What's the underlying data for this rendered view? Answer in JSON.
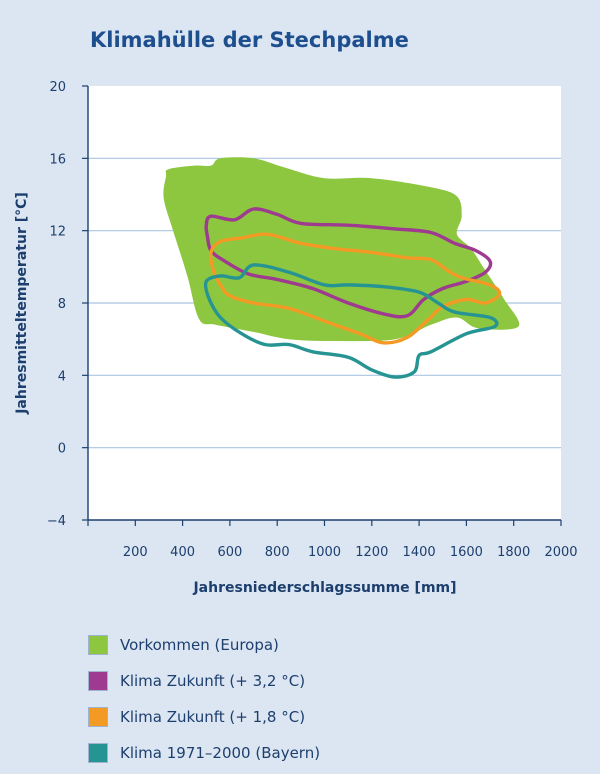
{
  "chart_data": {
    "type": "area",
    "title": "Klimahülle der Stechpalme",
    "xlabel": "Jahresniederschlagssumme [mm]",
    "ylabel": "Jahresmitteltemperatur [°C]",
    "xlim": [
      0,
      2000
    ],
    "ylim": [
      -4,
      20
    ],
    "x_ticks": [
      200,
      400,
      600,
      800,
      1000,
      1200,
      1400,
      1600,
      1800,
      2000
    ],
    "y_ticks": [
      -4,
      0,
      4,
      8,
      12,
      16,
      20
    ],
    "y_tick_labels": [
      "−4",
      "0",
      "4",
      "8",
      "12",
      "16",
      "20"
    ],
    "grid": "horizontal",
    "legend_position": "bottom",
    "series": [
      {
        "name": "Vorkommen (Europa)",
        "color": "#8dc63f",
        "fill": true,
        "points": [
          [
            340,
            15.4
          ],
          [
            450,
            15.6
          ],
          [
            520,
            15.6
          ],
          [
            560,
            16.0
          ],
          [
            700,
            16.0
          ],
          [
            830,
            15.5
          ],
          [
            1000,
            14.9
          ],
          [
            1200,
            14.9
          ],
          [
            1450,
            14.4
          ],
          [
            1560,
            13.9
          ],
          [
            1580,
            12.8
          ],
          [
            1560,
            11.8
          ],
          [
            1620,
            11.0
          ],
          [
            1680,
            9.8
          ],
          [
            1760,
            8.2
          ],
          [
            1820,
            6.7
          ],
          [
            1650,
            6.6
          ],
          [
            1560,
            7.2
          ],
          [
            1450,
            6.8
          ],
          [
            1300,
            6.0
          ],
          [
            1050,
            5.9
          ],
          [
            850,
            6.0
          ],
          [
            700,
            6.4
          ],
          [
            540,
            6.8
          ],
          [
            470,
            7.1
          ],
          [
            420,
            9.5
          ],
          [
            360,
            12.0
          ],
          [
            320,
            13.8
          ],
          [
            330,
            15.0
          ]
        ]
      },
      {
        "name": "Klima Zukunft (+ 3,2 °C)",
        "color": "#9e3a8f",
        "fill": false,
        "points": [
          [
            500,
            12.3
          ],
          [
            520,
            12.8
          ],
          [
            620,
            12.6
          ],
          [
            700,
            13.2
          ],
          [
            800,
            12.9
          ],
          [
            900,
            12.4
          ],
          [
            1100,
            12.3
          ],
          [
            1300,
            12.1
          ],
          [
            1450,
            11.9
          ],
          [
            1550,
            11.3
          ],
          [
            1640,
            10.9
          ],
          [
            1700,
            10.3
          ],
          [
            1680,
            9.7
          ],
          [
            1600,
            9.2
          ],
          [
            1500,
            8.8
          ],
          [
            1420,
            8.2
          ],
          [
            1350,
            7.3
          ],
          [
            1250,
            7.4
          ],
          [
            1100,
            8.0
          ],
          [
            950,
            8.8
          ],
          [
            800,
            9.3
          ],
          [
            680,
            9.6
          ],
          [
            580,
            10.3
          ],
          [
            520,
            10.9
          ],
          [
            505,
            11.7
          ]
        ]
      },
      {
        "name": "Klima Zukunft (+ 1,8 °C)",
        "color": "#f39a25",
        "fill": false,
        "points": [
          [
            520,
            10.8
          ],
          [
            560,
            11.4
          ],
          [
            650,
            11.6
          ],
          [
            760,
            11.8
          ],
          [
            900,
            11.3
          ],
          [
            1050,
            11.0
          ],
          [
            1200,
            10.8
          ],
          [
            1350,
            10.5
          ],
          [
            1450,
            10.4
          ],
          [
            1520,
            9.8
          ],
          [
            1580,
            9.4
          ],
          [
            1700,
            9.0
          ],
          [
            1740,
            8.5
          ],
          [
            1680,
            8.0
          ],
          [
            1600,
            8.2
          ],
          [
            1500,
            7.8
          ],
          [
            1440,
            7.1
          ],
          [
            1350,
            6.1
          ],
          [
            1250,
            5.8
          ],
          [
            1150,
            6.3
          ],
          [
            1000,
            7.0
          ],
          [
            850,
            7.7
          ],
          [
            700,
            8.0
          ],
          [
            600,
            8.4
          ],
          [
            560,
            9.0
          ],
          [
            530,
            9.8
          ]
        ]
      },
      {
        "name": "Klima 1971–2000 (Bayern)",
        "color": "#279494",
        "fill": false,
        "points": [
          [
            500,
            9.2
          ],
          [
            560,
            9.5
          ],
          [
            640,
            9.4
          ],
          [
            700,
            10.1
          ],
          [
            850,
            9.7
          ],
          [
            1000,
            9.0
          ],
          [
            1100,
            9.0
          ],
          [
            1250,
            8.9
          ],
          [
            1400,
            8.6
          ],
          [
            1480,
            8.0
          ],
          [
            1550,
            7.5
          ],
          [
            1700,
            7.2
          ],
          [
            1720,
            6.7
          ],
          [
            1600,
            6.3
          ],
          [
            1450,
            5.3
          ],
          [
            1400,
            5.1
          ],
          [
            1380,
            4.2
          ],
          [
            1300,
            3.9
          ],
          [
            1200,
            4.3
          ],
          [
            1100,
            5.0
          ],
          [
            950,
            5.3
          ],
          [
            850,
            5.7
          ],
          [
            750,
            5.7
          ],
          [
            650,
            6.3
          ],
          [
            560,
            7.2
          ],
          [
            510,
            8.3
          ]
        ]
      }
    ]
  }
}
